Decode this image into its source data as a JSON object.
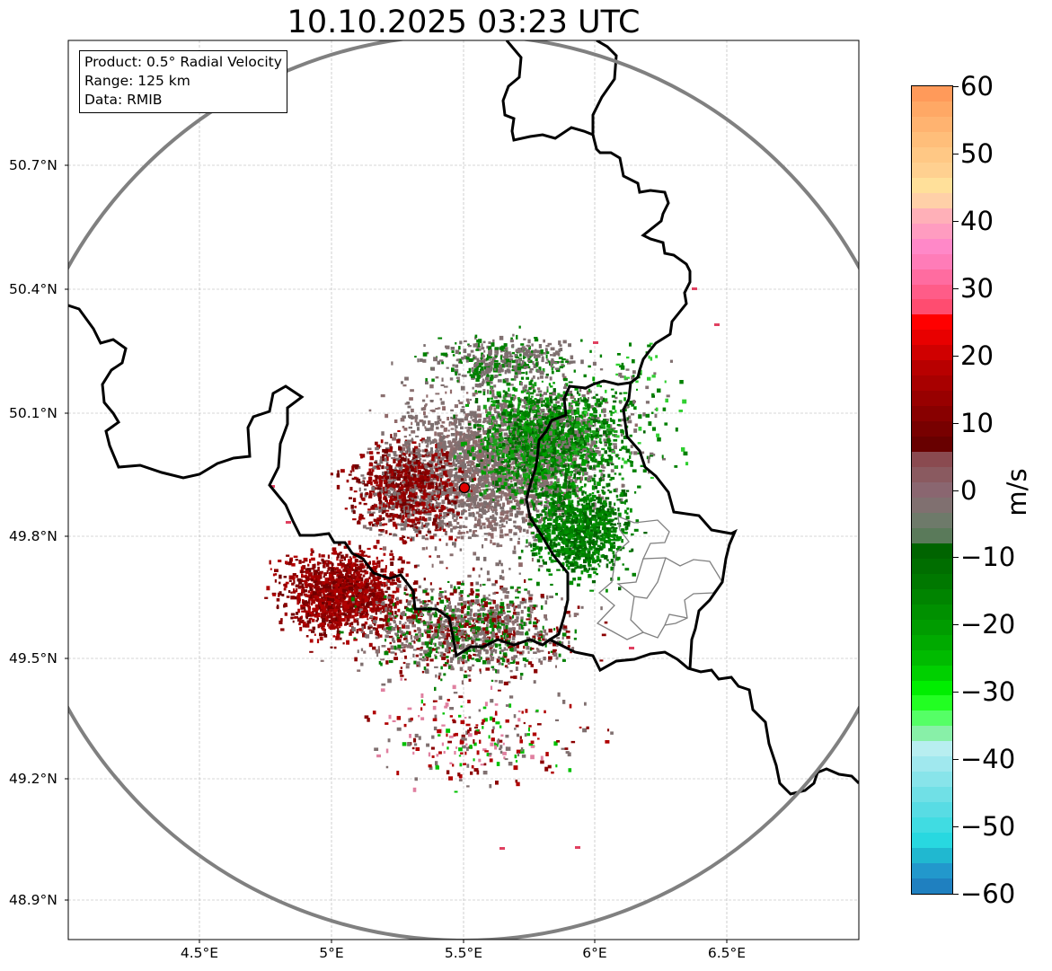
{
  "title": "10.10.2025 03:23 UTC",
  "info_box": {
    "product": "Product: 0.5° Radial Velocity",
    "range": "Range: 125 km",
    "data": "Data: RMIB"
  },
  "axes": {
    "lat_labels": [
      "50.7°N",
      "50.4°N",
      "50.1°N",
      "49.8°N",
      "49.5°N",
      "49.2°N",
      "48.9°N"
    ],
    "lon_labels": [
      "4.5°E",
      "5°E",
      "5.5°E",
      "6°E",
      "6.5°E"
    ],
    "grid": true
  },
  "colorbar": {
    "unit": "m/s",
    "range": [
      -60,
      60
    ],
    "ticks": [
      "60",
      "50",
      "40",
      "30",
      "20",
      "10",
      "0",
      "−10",
      "−20",
      "−30",
      "−40",
      "−50",
      "−60"
    ]
  },
  "colors": {
    "range_ring": "#808080",
    "border": "#000000",
    "inner_border": "#808080",
    "radar_site": "#e00000",
    "inbound_green": "#008000",
    "outbound_red": "#8b0000",
    "near_zero_gray": "#807070"
  },
  "map": {
    "radar_site": {
      "lat": 49.914,
      "lon": 5.506
    },
    "range_km": 125,
    "lat_range": [
      48.8,
      50.98
    ],
    "lon_range": [
      4.0,
      7.0
    ]
  }
}
